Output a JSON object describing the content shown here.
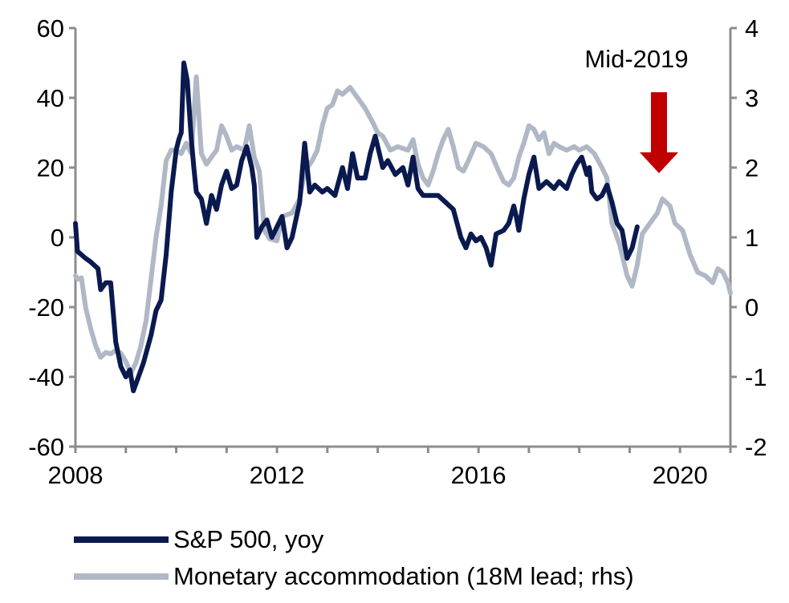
{
  "chart_data": {
    "type": "line",
    "title": "",
    "xlabel": "",
    "ylabel": "",
    "xlim": [
      2008,
      2021
    ],
    "x_ticks": [
      "2008",
      "2012",
      "2016",
      "2020"
    ],
    "ylim_left": [
      -60,
      60
    ],
    "y_ticks_left": [
      "60",
      "40",
      "20",
      "0",
      "-20",
      "-40",
      "-60"
    ],
    "ylim_right": [
      -2,
      4
    ],
    "y_ticks_right": [
      "4",
      "3",
      "2",
      "1",
      "0",
      "-1",
      "-2"
    ],
    "grid": false,
    "annotation": {
      "text": "Mid-2019",
      "arrow_color": "#c00000"
    },
    "series": [
      {
        "name": "S&P 500, yoy",
        "axis": "left",
        "color": "#0a1a4f",
        "points": [
          [
            2008.0,
            4
          ],
          [
            2008.04,
            -4
          ],
          [
            2008.2,
            -6
          ],
          [
            2008.3,
            -7
          ],
          [
            2008.45,
            -9
          ],
          [
            2008.5,
            -15
          ],
          [
            2008.6,
            -13
          ],
          [
            2008.7,
            -13
          ],
          [
            2008.8,
            -30
          ],
          [
            2008.9,
            -37
          ],
          [
            2009.0,
            -40
          ],
          [
            2009.08,
            -38
          ],
          [
            2009.15,
            -44
          ],
          [
            2009.25,
            -40
          ],
          [
            2009.35,
            -36
          ],
          [
            2009.5,
            -28
          ],
          [
            2009.6,
            -21
          ],
          [
            2009.7,
            -18
          ],
          [
            2009.8,
            -5
          ],
          [
            2009.9,
            13
          ],
          [
            2010.0,
            25
          ],
          [
            2010.05,
            28
          ],
          [
            2010.1,
            30
          ],
          [
            2010.15,
            50
          ],
          [
            2010.22,
            45
          ],
          [
            2010.3,
            28
          ],
          [
            2010.35,
            20
          ],
          [
            2010.4,
            13
          ],
          [
            2010.5,
            11
          ],
          [
            2010.6,
            4
          ],
          [
            2010.7,
            12
          ],
          [
            2010.8,
            8
          ],
          [
            2010.9,
            15
          ],
          [
            2011.0,
            19
          ],
          [
            2011.1,
            14
          ],
          [
            2011.2,
            15
          ],
          [
            2011.3,
            22
          ],
          [
            2011.4,
            26
          ],
          [
            2011.5,
            20
          ],
          [
            2011.55,
            15
          ],
          [
            2011.6,
            0
          ],
          [
            2011.7,
            3
          ],
          [
            2011.8,
            5
          ],
          [
            2011.9,
            0
          ],
          [
            2012.0,
            3
          ],
          [
            2012.1,
            6
          ],
          [
            2012.2,
            -3
          ],
          [
            2012.3,
            0
          ],
          [
            2012.45,
            10
          ],
          [
            2012.55,
            27
          ],
          [
            2012.65,
            13
          ],
          [
            2012.75,
            15
          ],
          [
            2012.9,
            13
          ],
          [
            2013.0,
            14
          ],
          [
            2013.15,
            12
          ],
          [
            2013.3,
            20
          ],
          [
            2013.4,
            14
          ],
          [
            2013.5,
            24
          ],
          [
            2013.6,
            17
          ],
          [
            2013.75,
            17
          ],
          [
            2013.85,
            24
          ],
          [
            2013.95,
            29
          ],
          [
            2014.1,
            20
          ],
          [
            2014.2,
            22
          ],
          [
            2014.35,
            18
          ],
          [
            2014.5,
            20
          ],
          [
            2014.6,
            15
          ],
          [
            2014.7,
            23
          ],
          [
            2014.8,
            14
          ],
          [
            2014.9,
            12
          ],
          [
            2015.05,
            12
          ],
          [
            2015.2,
            12
          ],
          [
            2015.35,
            10
          ],
          [
            2015.5,
            8
          ],
          [
            2015.65,
            0
          ],
          [
            2015.75,
            -3
          ],
          [
            2015.85,
            1
          ],
          [
            2015.95,
            -1
          ],
          [
            2016.05,
            0
          ],
          [
            2016.15,
            -3
          ],
          [
            2016.25,
            -8
          ],
          [
            2016.35,
            1
          ],
          [
            2016.5,
            2
          ],
          [
            2016.6,
            4
          ],
          [
            2016.7,
            9
          ],
          [
            2016.75,
            6
          ],
          [
            2016.8,
            2
          ],
          [
            2016.9,
            11
          ],
          [
            2017.0,
            18
          ],
          [
            2017.1,
            23
          ],
          [
            2017.2,
            14
          ],
          [
            2017.35,
            16
          ],
          [
            2017.5,
            14
          ],
          [
            2017.6,
            16
          ],
          [
            2017.75,
            14
          ],
          [
            2017.85,
            18
          ],
          [
            2017.95,
            21
          ],
          [
            2018.05,
            23
          ],
          [
            2018.15,
            18
          ],
          [
            2018.2,
            20
          ],
          [
            2018.25,
            13
          ],
          [
            2018.35,
            11
          ],
          [
            2018.45,
            12
          ],
          [
            2018.55,
            15
          ],
          [
            2018.65,
            10
          ],
          [
            2018.75,
            4
          ],
          [
            2018.85,
            2
          ],
          [
            2018.95,
            -6
          ],
          [
            2019.05,
            -3
          ],
          [
            2019.15,
            3
          ]
        ]
      },
      {
        "name": "Monetary accommodation (18M lead; rhs)",
        "axis": "right",
        "color": "#b0b8c6",
        "points": [
          [
            2008.0,
            0.45
          ],
          [
            2008.05,
            0.4
          ],
          [
            2008.12,
            0.42
          ],
          [
            2008.2,
            0.0
          ],
          [
            2008.3,
            -0.3
          ],
          [
            2008.4,
            -0.55
          ],
          [
            2008.5,
            -0.72
          ],
          [
            2008.6,
            -0.65
          ],
          [
            2008.7,
            -0.67
          ],
          [
            2008.8,
            -0.62
          ],
          [
            2008.9,
            -0.66
          ],
          [
            2009.0,
            -0.78
          ],
          [
            2009.1,
            -0.95
          ],
          [
            2009.2,
            -0.8
          ],
          [
            2009.3,
            -0.55
          ],
          [
            2009.4,
            -0.2
          ],
          [
            2009.5,
            0.4
          ],
          [
            2009.6,
            1.0
          ],
          [
            2009.7,
            1.45
          ],
          [
            2009.8,
            2.1
          ],
          [
            2009.9,
            2.25
          ],
          [
            2010.0,
            2.25
          ],
          [
            2010.1,
            2.2
          ],
          [
            2010.2,
            2.35
          ],
          [
            2010.3,
            2.2
          ],
          [
            2010.4,
            3.3
          ],
          [
            2010.5,
            2.2
          ],
          [
            2010.6,
            2.05
          ],
          [
            2010.7,
            2.15
          ],
          [
            2010.8,
            2.25
          ],
          [
            2010.9,
            2.6
          ],
          [
            2011.0,
            2.45
          ],
          [
            2011.1,
            2.25
          ],
          [
            2011.2,
            2.3
          ],
          [
            2011.35,
            2.25
          ],
          [
            2011.45,
            2.6
          ],
          [
            2011.55,
            2.15
          ],
          [
            2011.65,
            1.95
          ],
          [
            2011.75,
            1.1
          ],
          [
            2011.85,
            0.98
          ],
          [
            2012.0,
            0.95
          ],
          [
            2012.1,
            1.3
          ],
          [
            2012.3,
            1.35
          ],
          [
            2012.45,
            1.55
          ],
          [
            2012.55,
            1.95
          ],
          [
            2012.7,
            2.1
          ],
          [
            2012.8,
            2.25
          ],
          [
            2012.9,
            2.6
          ],
          [
            2013.0,
            2.85
          ],
          [
            2013.1,
            2.9
          ],
          [
            2013.2,
            3.1
          ],
          [
            2013.3,
            3.05
          ],
          [
            2013.45,
            3.15
          ],
          [
            2013.6,
            3.0
          ],
          [
            2013.75,
            2.85
          ],
          [
            2013.9,
            2.65
          ],
          [
            2014.0,
            2.5
          ],
          [
            2014.1,
            2.45
          ],
          [
            2014.25,
            2.25
          ],
          [
            2014.4,
            2.3
          ],
          [
            2014.6,
            2.25
          ],
          [
            2014.7,
            2.4
          ],
          [
            2014.8,
            2.05
          ],
          [
            2014.9,
            1.85
          ],
          [
            2015.0,
            1.75
          ],
          [
            2015.1,
            1.95
          ],
          [
            2015.2,
            2.2
          ],
          [
            2015.3,
            2.4
          ],
          [
            2015.4,
            2.55
          ],
          [
            2015.5,
            2.3
          ],
          [
            2015.6,
            2.0
          ],
          [
            2015.7,
            1.95
          ],
          [
            2015.8,
            2.1
          ],
          [
            2015.95,
            2.35
          ],
          [
            2016.1,
            2.3
          ],
          [
            2016.25,
            2.2
          ],
          [
            2016.4,
            1.95
          ],
          [
            2016.5,
            1.8
          ],
          [
            2016.6,
            1.75
          ],
          [
            2016.7,
            1.85
          ],
          [
            2016.8,
            2.15
          ],
          [
            2016.9,
            2.35
          ],
          [
            2017.0,
            2.6
          ],
          [
            2017.1,
            2.55
          ],
          [
            2017.2,
            2.4
          ],
          [
            2017.3,
            2.5
          ],
          [
            2017.4,
            2.2
          ],
          [
            2017.5,
            2.35
          ],
          [
            2017.6,
            2.3
          ],
          [
            2017.75,
            2.25
          ],
          [
            2017.9,
            2.3
          ],
          [
            2018.0,
            2.25
          ],
          [
            2018.15,
            2.3
          ],
          [
            2018.3,
            2.2
          ],
          [
            2018.45,
            2.0
          ],
          [
            2018.55,
            1.85
          ],
          [
            2018.65,
            1.2
          ],
          [
            2018.8,
            0.9
          ],
          [
            2018.95,
            0.45
          ],
          [
            2019.05,
            0.3
          ],
          [
            2019.15,
            0.6
          ],
          [
            2019.25,
            1.05
          ],
          [
            2019.4,
            1.2
          ],
          [
            2019.55,
            1.35
          ],
          [
            2019.65,
            1.55
          ],
          [
            2019.8,
            1.45
          ],
          [
            2019.9,
            1.2
          ],
          [
            2020.05,
            1.1
          ],
          [
            2020.2,
            0.75
          ],
          [
            2020.35,
            0.5
          ],
          [
            2020.5,
            0.45
          ],
          [
            2020.65,
            0.35
          ],
          [
            2020.75,
            0.55
          ],
          [
            2020.85,
            0.5
          ],
          [
            2020.95,
            0.35
          ],
          [
            2021.0,
            0.2
          ]
        ]
      }
    ]
  }
}
